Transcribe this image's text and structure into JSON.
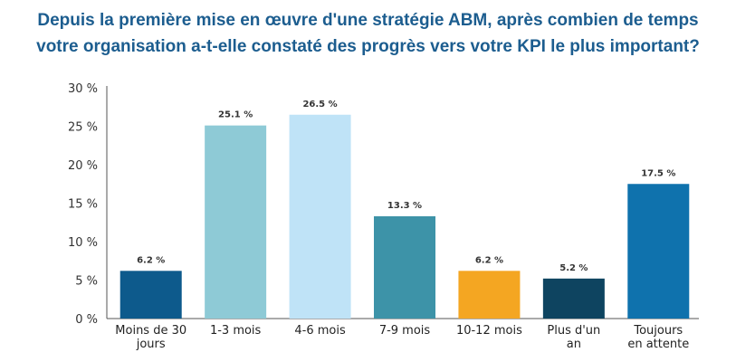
{
  "chart_data": {
    "type": "bar",
    "title_lines": [
      "Depuis la première mise en œuvre d'une stratégie ABM, après combien de temps",
      "votre organisation a-t-elle constaté des progrès vers votre KPI le plus important?"
    ],
    "categories": [
      [
        "Moins de 30",
        "jours"
      ],
      [
        "1-3 mois"
      ],
      [
        "4-6 mois"
      ],
      [
        "7-9 mois"
      ],
      [
        "10-12 mois"
      ],
      [
        "Plus d'un",
        "an"
      ],
      [
        "Toujours",
        "en attente"
      ]
    ],
    "values": [
      6.2,
      25.1,
      26.5,
      13.3,
      6.2,
      5.2,
      17.5
    ],
    "data_labels": [
      "6.2 %",
      "25.1 %",
      "26.5 %",
      "13.3 %",
      "6.2 %",
      "5.2 %",
      "17.5 %"
    ],
    "bar_colors": [
      "#0d5a8c",
      "#8ecad6",
      "#bfe3f7",
      "#3d93a8",
      "#f4a622",
      "#0e4460",
      "#0f72ad"
    ],
    "yticks": [
      0,
      5,
      10,
      15,
      20,
      25,
      30
    ],
    "ytick_labels": [
      "0 %",
      "5 %",
      "10 %",
      "15 %",
      "20 %",
      "25 %",
      "30 %"
    ],
    "ylim": [
      0,
      30
    ],
    "grid": false,
    "legend": "none"
  }
}
